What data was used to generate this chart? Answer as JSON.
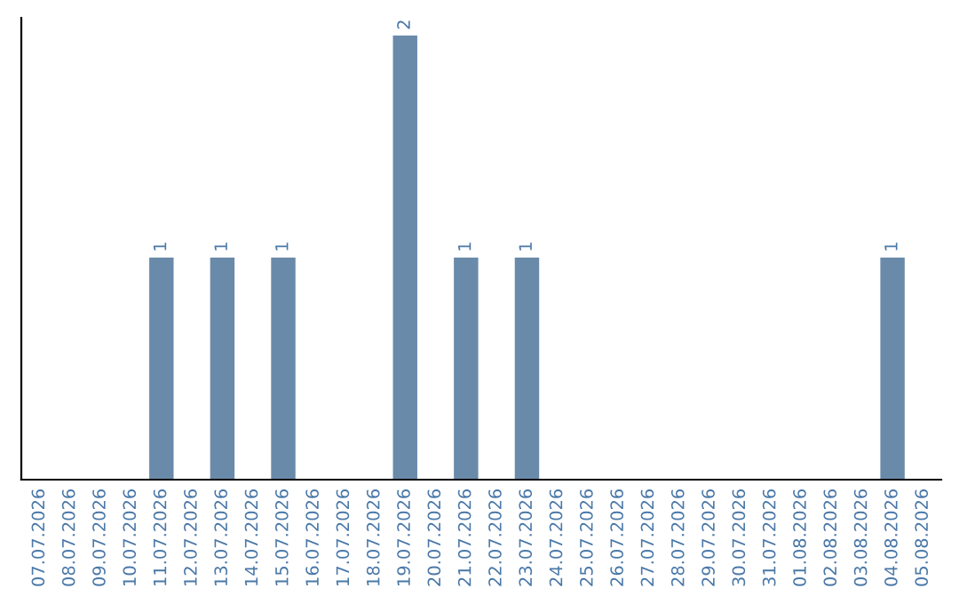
{
  "chart_data": {
    "type": "bar",
    "categories": [
      "07.07.2026",
      "08.07.2026",
      "09.07.2026",
      "10.07.2026",
      "11.07.2026",
      "12.07.2026",
      "13.07.2026",
      "14.07.2026",
      "15.07.2026",
      "16.07.2026",
      "17.07.2026",
      "18.07.2026",
      "19.07.2026",
      "20.07.2026",
      "21.07.2026",
      "22.07.2026",
      "23.07.2026",
      "24.07.2026",
      "25.07.2026",
      "26.07.2026",
      "27.07.2026",
      "28.07.2026",
      "29.07.2026",
      "30.07.2026",
      "31.07.2026",
      "01.08.2026",
      "02.08.2026",
      "03.08.2026",
      "04.08.2026",
      "05.08.2026"
    ],
    "values": [
      0,
      0,
      0,
      0,
      1,
      0,
      1,
      0,
      1,
      0,
      0,
      0,
      2,
      0,
      1,
      0,
      1,
      0,
      0,
      0,
      0,
      0,
      0,
      0,
      0,
      0,
      0,
      0,
      1,
      0
    ],
    "value_labels": [
      null,
      null,
      null,
      null,
      "1",
      null,
      "1",
      null,
      "1",
      null,
      null,
      null,
      "2",
      null,
      "1",
      null,
      "1",
      null,
      null,
      null,
      null,
      null,
      null,
      null,
      null,
      null,
      null,
      null,
      "1",
      null
    ],
    "color": "#6a8aaa",
    "grid": false,
    "legend": false,
    "tick_labels": "x"
  }
}
